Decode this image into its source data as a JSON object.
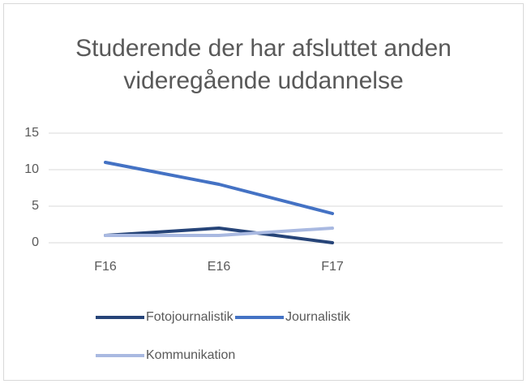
{
  "chart_data": {
    "type": "line",
    "title": "Studerende der har afsluttet anden videregående uddannelse",
    "categories": [
      "F16",
      "E16",
      "F17",
      null
    ],
    "series": [
      {
        "name": "Fotojournalistik",
        "color": "#264478",
        "values": [
          1,
          2,
          0,
          null
        ]
      },
      {
        "name": "Journalistik",
        "color": "#4472c4",
        "values": [
          11,
          8,
          4,
          null
        ]
      },
      {
        "name": "Kommunikation",
        "color": "#a9b9e1",
        "values": [
          1,
          1,
          2,
          null
        ]
      }
    ],
    "ylim": [
      0,
      15
    ],
    "yticks": [
      0,
      5,
      10,
      15
    ],
    "grid": true,
    "legend": "bottom"
  }
}
